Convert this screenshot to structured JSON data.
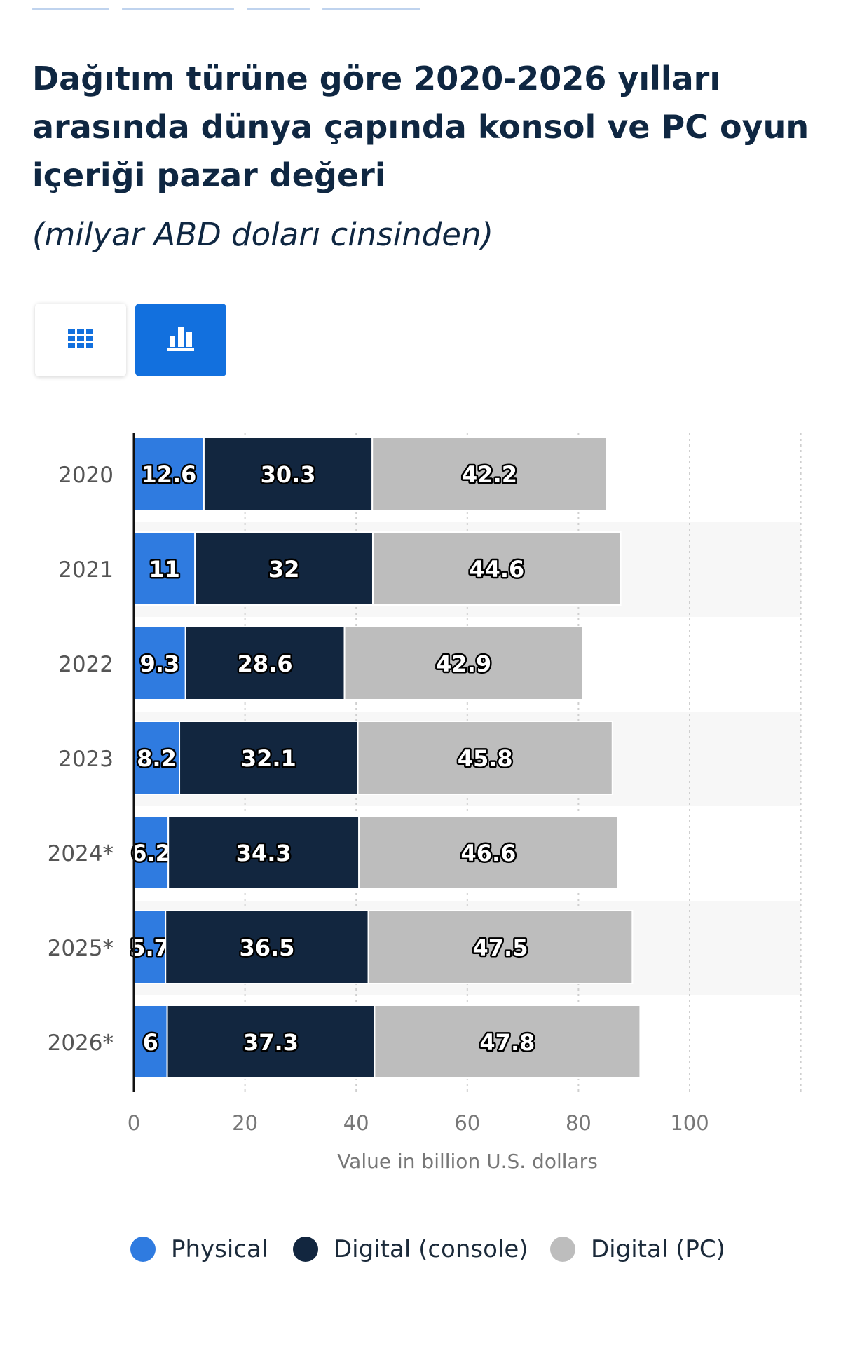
{
  "page": {
    "title": "Dağıtım türüne göre 2020-2026 yılları arasında dünya çapında konsol ve PC oyun içeriği pazar değeri",
    "subtitle": "(milyar ABD doları cinsinden)"
  },
  "view_toggle": {
    "table_icon": "grid-icon",
    "chart_icon": "bar-chart-icon",
    "active": "chart"
  },
  "colors": {
    "physical": "#2f7be0",
    "digital_console": "#12263f",
    "digital_pc": "#bdbdbd",
    "accent": "#1270de"
  },
  "chart_data": {
    "type": "bar",
    "orientation": "horizontal",
    "stacked": true,
    "categories": [
      "2020",
      "2021",
      "2022",
      "2023",
      "2024*",
      "2025*",
      "2026*"
    ],
    "series": [
      {
        "name": "Physical",
        "color": "#2f7be0",
        "values": [
          12.6,
          11,
          9.3,
          8.2,
          6.2,
          5.7,
          6
        ]
      },
      {
        "name": "Digital (console)",
        "color": "#12263f",
        "values": [
          30.3,
          32,
          28.6,
          32.1,
          34.3,
          36.5,
          37.3
        ]
      },
      {
        "name": "Digital (PC)",
        "color": "#bdbdbd",
        "values": [
          42.2,
          44.6,
          42.9,
          45.8,
          46.6,
          47.5,
          47.8
        ]
      }
    ],
    "x_ticks": [
      "0",
      "20",
      "40",
      "60",
      "80",
      "100"
    ],
    "xlim": [
      0,
      120
    ],
    "xlabel": "Value in billion U.S. dollars",
    "ylabel": "",
    "grid": true,
    "legend_position": "bottom"
  }
}
